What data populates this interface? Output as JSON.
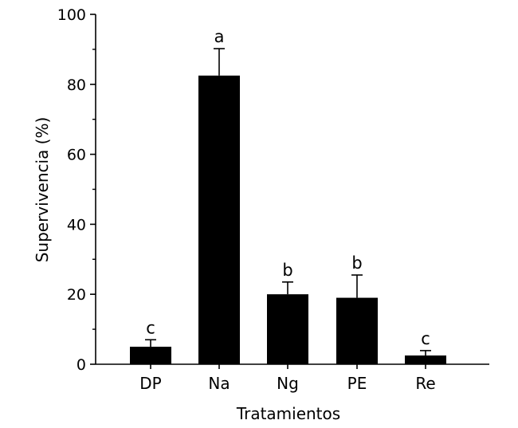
{
  "chart_data": {
    "type": "bar",
    "title": "",
    "xlabel": "Tratamientos",
    "ylabel": "Supervivencia (%)",
    "ylim": [
      0,
      100
    ],
    "yticks": [
      0,
      20,
      40,
      60,
      80,
      100
    ],
    "ytick_labels": [
      "0",
      "20",
      "40",
      "60",
      "80",
      "100"
    ],
    "categories": [
      "DP",
      "Na",
      "Ng",
      "PE",
      "Re"
    ],
    "values": [
      5,
      82.5,
      20,
      19,
      2.5
    ],
    "error": [
      2,
      7.7,
      3.5,
      6.5,
      1.4
    ],
    "significance": [
      "c",
      "a",
      "b",
      "b",
      "c"
    ],
    "bar_color": "#000000",
    "grid": false,
    "legend": "none"
  }
}
